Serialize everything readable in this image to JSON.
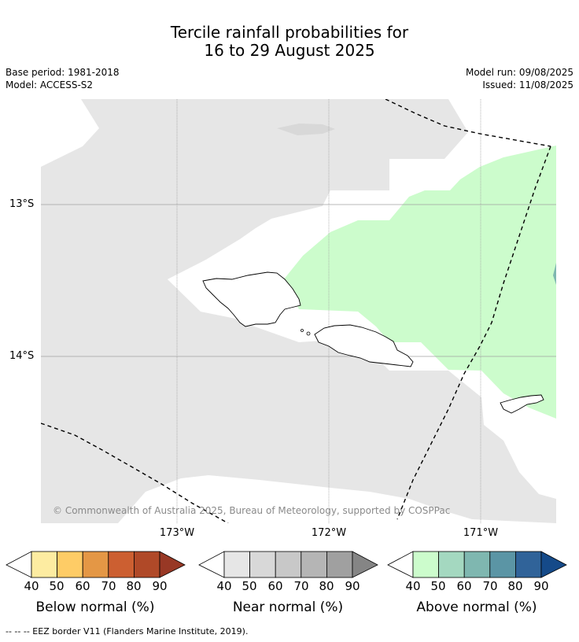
{
  "title_line1": "Tercile rainfall probabilities for",
  "title_line2": "16 to 29 August 2025",
  "meta_left": {
    "base_period": "Base period: 1981-2018",
    "model": "Model: ACCESS-S2"
  },
  "meta_right": {
    "model_run": "Model run: 09/08/2025",
    "issued": "Issued: 11/08/2025"
  },
  "map": {
    "lat_labels": [
      "13°S",
      "14°S"
    ],
    "lon_labels": [
      "173°W",
      "172°W",
      "171°W"
    ],
    "copyright": "© Commonwealth of Australia 2025, Bureau of Meteorology, supported by COSPPac",
    "colors": {
      "near_normal_40": "#e6e6e6",
      "above_normal_40": "#ccfccc",
      "above_normal_60": "#7fb7b0",
      "gridline": "#a0a0a0",
      "eez": "#000000"
    }
  },
  "legends": [
    {
      "caption": "Below normal (%)",
      "ticks": [
        "40",
        "50",
        "60",
        "70",
        "80",
        "90"
      ],
      "colors": [
        "#fdeca1",
        "#fecc66",
        "#e49745",
        "#cc5f31",
        "#b04928",
        "#983825"
      ]
    },
    {
      "caption": "Near normal (%)",
      "ticks": [
        "40",
        "50",
        "60",
        "70",
        "80",
        "90"
      ],
      "colors": [
        "#e6e6e6",
        "#d8d8d8",
        "#c8c8c8",
        "#b5b5b5",
        "#a0a0a0",
        "#858585"
      ]
    },
    {
      "caption": "Above normal (%)",
      "ticks": [
        "40",
        "50",
        "60",
        "70",
        "80",
        "90"
      ],
      "colors": [
        "#ccfccc",
        "#a4d8c0",
        "#7fb7b0",
        "#5b95a5",
        "#306399",
        "#154a89"
      ]
    }
  ],
  "footnote": "--  --  -- EEZ border V11 (Flanders Marine Institute, 2019)."
}
